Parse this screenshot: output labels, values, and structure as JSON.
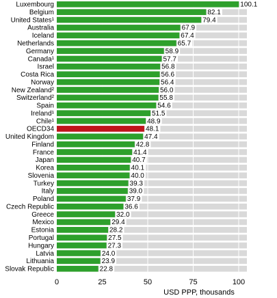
{
  "chart_data": {
    "type": "bar",
    "orientation": "horizontal",
    "categories": [
      "Luxembourg",
      "Belgium",
      "United States¹",
      "Australia",
      "Iceland",
      "Netherlands",
      "Germany",
      "Canada¹",
      "Israel",
      "Costa Rica",
      "Norway",
      "New Zealand²",
      "Switzerland²",
      "Spain",
      "Ireland¹",
      "Chile¹",
      "OECD34",
      "United Kingdom",
      "Finland",
      "France",
      "Japan",
      "Korea",
      "Slovenia",
      "Turkey",
      "Italy",
      "Poland",
      "Czech Republic",
      "Greece",
      "Mexico",
      "Estonia",
      "Portugal",
      "Hungary",
      "Latvia",
      "Lithuania",
      "Slovak Republic"
    ],
    "values": [
      100.1,
      82.1,
      79.4,
      67.9,
      67.4,
      65.7,
      58.9,
      57.7,
      56.8,
      56.6,
      56.4,
      56.0,
      55.8,
      54.6,
      51.5,
      48.9,
      48.1,
      47.4,
      42.8,
      41.4,
      40.7,
      40.1,
      40.0,
      39.3,
      39.0,
      37.9,
      36.6,
      32.0,
      29.4,
      28.2,
      27.5,
      27.3,
      24.0,
      23.9,
      22.8
    ],
    "value_labels": [
      "100.1",
      "82.1",
      "79.4",
      "67.9",
      "67.4",
      "65.7",
      "58.9",
      "57.7",
      "56.8",
      "56.6",
      "56.4",
      "56.0",
      "55.8",
      "54.6",
      "51.5",
      "48.9",
      "48.1",
      "47.4",
      "42.8",
      "41.4",
      "40.7",
      "40.1",
      "40.0",
      "39.3",
      "39.0",
      "37.9",
      "36.6",
      "32.0",
      "29.4",
      "28.2",
      "27.5",
      "27.3",
      "24.0",
      "23.9",
      "22.8"
    ],
    "highlight": "OECD34",
    "xlim": [
      0,
      100
    ],
    "xticks": [
      "0",
      "25",
      "50",
      "75",
      "100"
    ],
    "xlabel": "USD PPP, thousands",
    "grid": true,
    "colors": {
      "bar": "#2ea02c",
      "highlight": "#c0141b",
      "track": "#d9d9d9",
      "label_bg": "#ffffff"
    }
  }
}
